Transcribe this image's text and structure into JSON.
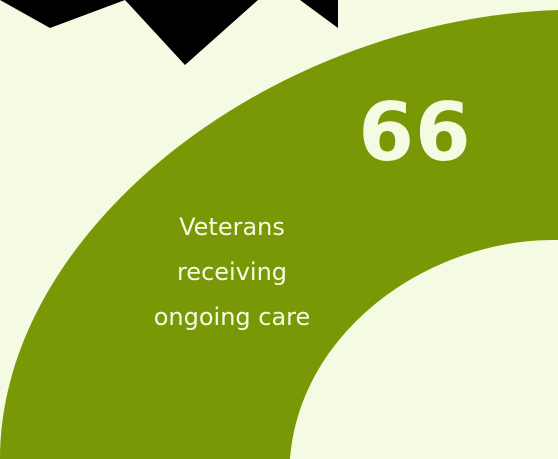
{
  "stat": {
    "value": "66",
    "label_lines": [
      "Veterans",
      "receiving",
      "ongoing care"
    ]
  },
  "colors": {
    "background": "#f5fbe3",
    "arc": "#799805",
    "dark_shape": "#000000",
    "text": "#f5fbe3"
  }
}
